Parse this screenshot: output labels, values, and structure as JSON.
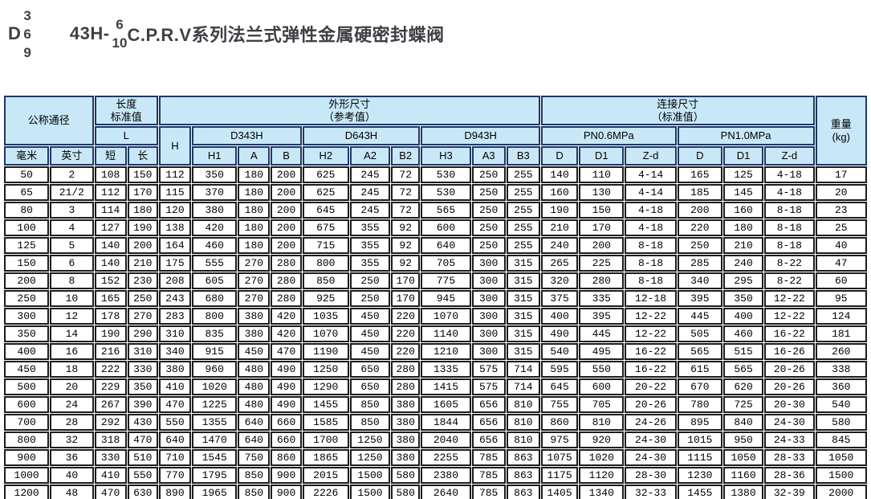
{
  "title": {
    "prefix": "D",
    "prefix_stack": [
      "3",
      "6",
      "9"
    ],
    "code": "43H-",
    "code_stack": [
      "6",
      "10"
    ],
    "name": "C.P.R.V系列法兰式弹性金属硬密封蝶阀"
  },
  "colors": {
    "header_bg": "#c8e8f8",
    "header_border": "#1f3864",
    "cell_border": "#1c1c1c",
    "title_color": "#3d4045"
  },
  "table": {
    "header": {
      "nominal_diameter": "公称通径",
      "length_std": "长度\n标准值",
      "L": "L",
      "H": "H",
      "outline_dims": "外形尺寸\n（参考值）",
      "connect_dims": "连接尺寸\n（标准值）",
      "weight": "重量\n(kg)",
      "d343h": "D343H",
      "d643h": "D643H",
      "d943h": "D943H",
      "pn06": "PN0.6MPa",
      "pn10": "PN1.0MPa",
      "cols": [
        "毫米",
        "英寸",
        "短",
        "长",
        "H1",
        "A",
        "B",
        "H2",
        "A2",
        "B2",
        "H3",
        "A3",
        "B3",
        "D",
        "D1",
        "Z-d",
        "D",
        "D1",
        "Z-d"
      ]
    },
    "rows": [
      [
        "50",
        "2",
        "108",
        "150",
        "112",
        "350",
        "180",
        "200",
        "625",
        "245",
        "72",
        "530",
        "250",
        "255",
        "140",
        "110",
        "4-14",
        "165",
        "125",
        "4-18",
        "17"
      ],
      [
        "65",
        "21/2",
        "112",
        "170",
        "115",
        "370",
        "180",
        "200",
        "625",
        "245",
        "72",
        "530",
        "250",
        "255",
        "160",
        "130",
        "4-14",
        "185",
        "145",
        "4-18",
        "20"
      ],
      [
        "80",
        "3",
        "114",
        "180",
        "120",
        "380",
        "180",
        "200",
        "645",
        "245",
        "72",
        "565",
        "250",
        "255",
        "190",
        "150",
        "4-18",
        "200",
        "160",
        "8-18",
        "23"
      ],
      [
        "100",
        "4",
        "127",
        "190",
        "138",
        "420",
        "180",
        "200",
        "675",
        "355",
        "92",
        "600",
        "250",
        "255",
        "210",
        "170",
        "4-18",
        "220",
        "180",
        "8-18",
        "25"
      ],
      [
        "125",
        "5",
        "140",
        "200",
        "164",
        "460",
        "180",
        "200",
        "715",
        "355",
        "92",
        "640",
        "250",
        "255",
        "240",
        "200",
        "8-18",
        "250",
        "210",
        "8-18",
        "40"
      ],
      [
        "150",
        "6",
        "140",
        "210",
        "175",
        "555",
        "270",
        "280",
        "800",
        "355",
        "92",
        "705",
        "300",
        "315",
        "265",
        "225",
        "8-18",
        "285",
        "240",
        "8-22",
        "47"
      ],
      [
        "200",
        "8",
        "152",
        "230",
        "208",
        "605",
        "270",
        "280",
        "850",
        "250",
        "170",
        "775",
        "300",
        "315",
        "320",
        "280",
        "8-18",
        "340",
        "295",
        "8-22",
        "60"
      ],
      [
        "250",
        "10",
        "165",
        "250",
        "243",
        "680",
        "270",
        "280",
        "925",
        "250",
        "170",
        "945",
        "300",
        "315",
        "375",
        "335",
        "12-18",
        "395",
        "350",
        "12-22",
        "95"
      ],
      [
        "300",
        "12",
        "178",
        "270",
        "283",
        "800",
        "380",
        "420",
        "1035",
        "450",
        "220",
        "1070",
        "300",
        "315",
        "400",
        "395",
        "12-22",
        "445",
        "400",
        "12-22",
        "124"
      ],
      [
        "350",
        "14",
        "190",
        "290",
        "310",
        "835",
        "380",
        "420",
        "1070",
        "450",
        "220",
        "1140",
        "300",
        "315",
        "490",
        "445",
        "12-22",
        "505",
        "460",
        "16-22",
        "181"
      ],
      [
        "400",
        "16",
        "216",
        "310",
        "340",
        "915",
        "450",
        "470",
        "1190",
        "450",
        "220",
        "1210",
        "300",
        "315",
        "540",
        "495",
        "16-22",
        "565",
        "515",
        "16-26",
        "260"
      ],
      [
        "450",
        "18",
        "222",
        "330",
        "380",
        "960",
        "480",
        "490",
        "1250",
        "650",
        "280",
        "1335",
        "575",
        "714",
        "595",
        "550",
        "16-22",
        "615",
        "565",
        "20-26",
        "338"
      ],
      [
        "500",
        "20",
        "229",
        "350",
        "410",
        "1020",
        "480",
        "490",
        "1290",
        "650",
        "280",
        "1415",
        "575",
        "714",
        "645",
        "600",
        "20-22",
        "670",
        "620",
        "20-26",
        "360"
      ],
      [
        "600",
        "24",
        "267",
        "390",
        "470",
        "1225",
        "480",
        "490",
        "1455",
        "850",
        "380",
        "1605",
        "656",
        "810",
        "755",
        "705",
        "20-26",
        "780",
        "725",
        "20-30",
        "540"
      ],
      [
        "700",
        "28",
        "292",
        "430",
        "550",
        "1355",
        "640",
        "660",
        "1585",
        "850",
        "380",
        "1844",
        "656",
        "810",
        "860",
        "810",
        "24-26",
        "895",
        "840",
        "24-30",
        "580"
      ],
      [
        "800",
        "32",
        "318",
        "470",
        "640",
        "1470",
        "640",
        "660",
        "1700",
        "1250",
        "380",
        "2040",
        "656",
        "810",
        "975",
        "920",
        "24-30",
        "1015",
        "950",
        "24-33",
        "845"
      ],
      [
        "900",
        "36",
        "330",
        "510",
        "710",
        "1545",
        "750",
        "860",
        "1865",
        "1250",
        "380",
        "2255",
        "785",
        "863",
        "1075",
        "1020",
        "24-30",
        "1115",
        "1050",
        "28-33",
        "1050"
      ],
      [
        "1000",
        "40",
        "410",
        "550",
        "770",
        "1795",
        "850",
        "900",
        "2015",
        "1500",
        "580",
        "2380",
        "785",
        "863",
        "1175",
        "1120",
        "28-30",
        "1230",
        "1160",
        "28-36",
        "1500"
      ],
      [
        "1200",
        "48",
        "470",
        "630",
        "890",
        "1965",
        "850",
        "900",
        "2226",
        "1500",
        "580",
        "2640",
        "785",
        "863",
        "1405",
        "1340",
        "32-33",
        "1455",
        "1380",
        "32-39",
        "2000"
      ]
    ]
  }
}
